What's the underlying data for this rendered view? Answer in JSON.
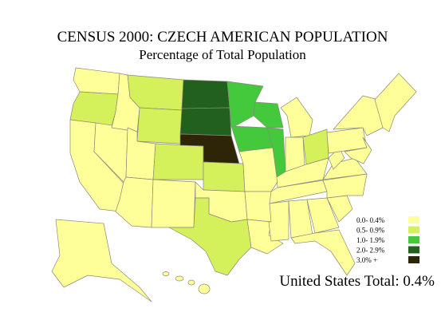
{
  "title": "CENSUS 2000: CZECH AMERICAN POPULATION",
  "subtitle": "Percentage of Total Population",
  "legend": [
    {
      "label": "0.0- 0.4%",
      "color": "#ffff99"
    },
    {
      "label": "0.5- 0.9%",
      "color": "#d4f05a"
    },
    {
      "label": "1.0- 1.9%",
      "color": "#44c93c"
    },
    {
      "label": "2.0- 2.9%",
      "color": "#22601e"
    },
    {
      "label": "3.0% +",
      "color": "#2e2408"
    }
  ],
  "total": "United States Total: 0.4%"
}
